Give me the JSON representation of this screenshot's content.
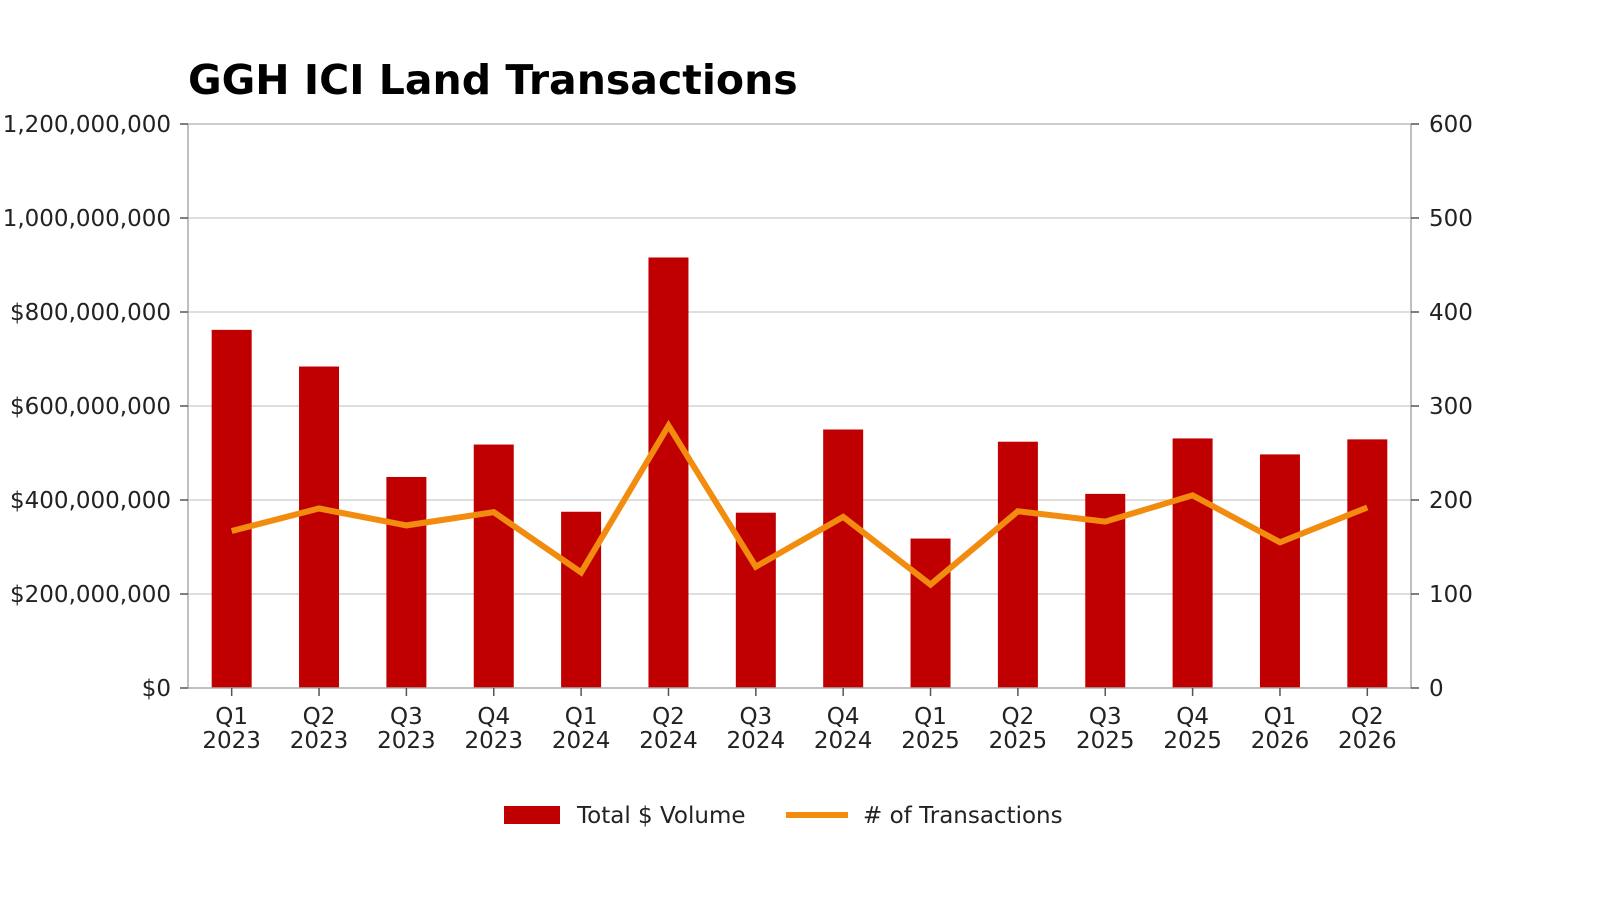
{
  "chart_data": {
    "type": "bar",
    "title": "GGH ICI Land Transactions",
    "categories": [
      [
        "Q1",
        "2023"
      ],
      [
        "Q2",
        "2023"
      ],
      [
        "Q3",
        "2023"
      ],
      [
        "Q4",
        "2023"
      ],
      [
        "Q1",
        "2024"
      ],
      [
        "Q2",
        "2024"
      ],
      [
        "Q3",
        "2024"
      ],
      [
        "Q4",
        "2024"
      ],
      [
        "Q1",
        "2025"
      ],
      [
        "Q2",
        "2025"
      ],
      [
        "Q3",
        "2025"
      ],
      [
        "Q4",
        "2025"
      ],
      [
        "Q1",
        "2026"
      ],
      [
        "Q2",
        "2026"
      ]
    ],
    "series": [
      {
        "name": "Total $ Volume",
        "kind": "bar",
        "axis": "left",
        "color": "#c00000",
        "values": [
          762000000,
          684000000,
          449000000,
          518000000,
          375000000,
          916000000,
          373000000,
          550000000,
          318000000,
          524000000,
          413000000,
          531000000,
          497000000,
          529000000
        ]
      },
      {
        "name": "# of Transactions",
        "kind": "line",
        "axis": "right",
        "color": "#f28c0f",
        "values": [
          167,
          191,
          173,
          187,
          123,
          279,
          129,
          182,
          110,
          188,
          177,
          205,
          155,
          192
        ]
      }
    ],
    "y_left": {
      "lim": [
        0,
        1200000000
      ],
      "ticks": [
        0,
        200000000,
        400000000,
        600000000,
        800000000,
        1000000000,
        1200000000
      ],
      "tick_labels": [
        "$0",
        "$200,000,000",
        "$400,000,000",
        "$600,000,000",
        "$800,000,000",
        "1,000,000,000",
        "1,200,000,000"
      ]
    },
    "y_right": {
      "lim": [
        0,
        600
      ],
      "ticks": [
        0,
        100,
        200,
        300,
        400,
        500,
        600
      ],
      "tick_labels": [
        "0",
        "100",
        "200",
        "300",
        "400",
        "500",
        "600"
      ]
    },
    "grid": true,
    "legend_position": "bottom-center"
  }
}
